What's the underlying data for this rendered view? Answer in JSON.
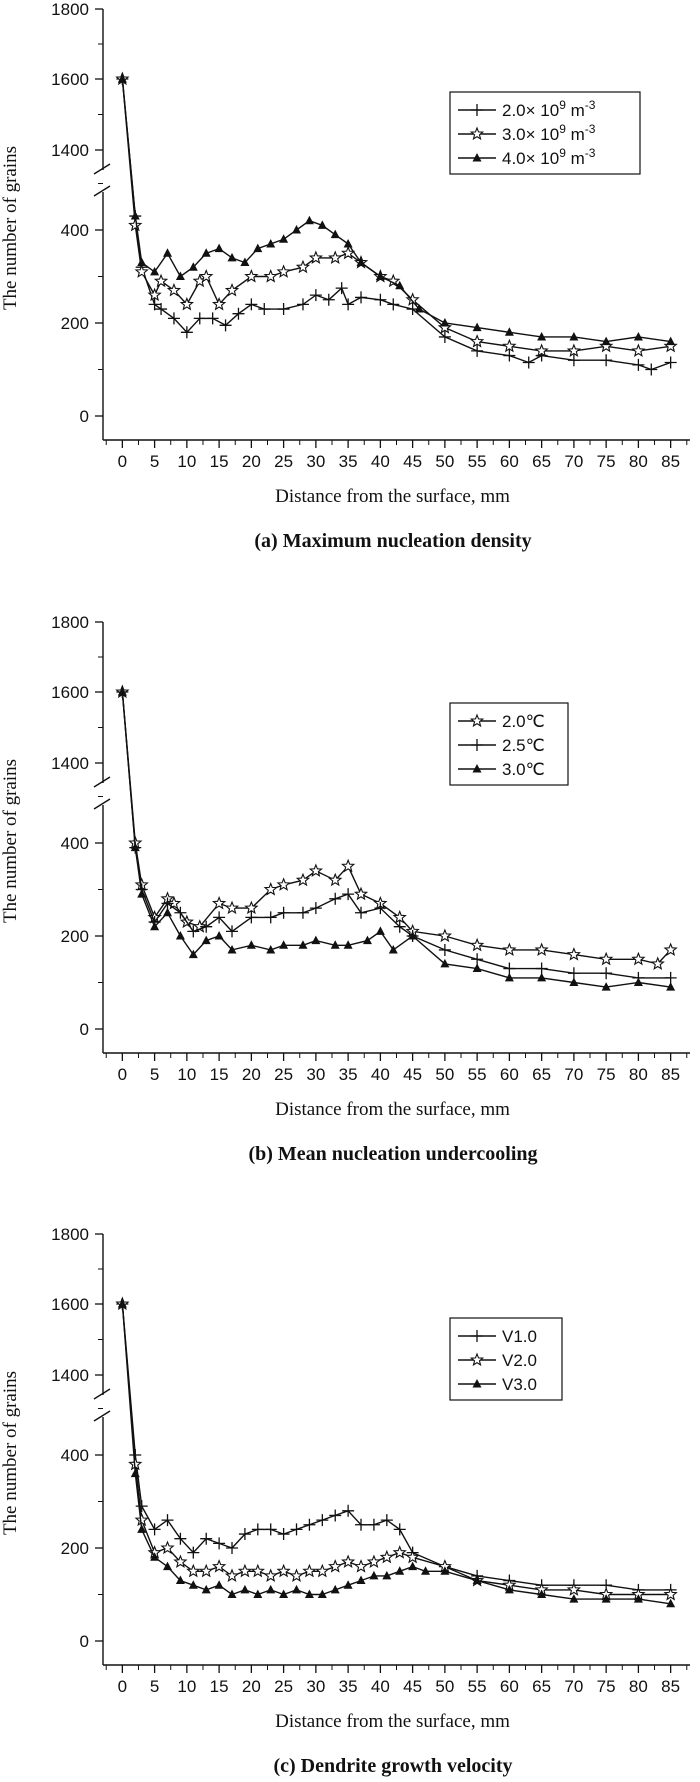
{
  "chart_data": [
    {
      "type": "line",
      "panel": "a",
      "caption": "(a) Maximum nucleation density",
      "xlabel": "Distance from the surface, mm",
      "ylabel": "The number of grains",
      "x_ticks": [
        "0",
        "5",
        "10",
        "15",
        "20",
        "25",
        "30",
        "35",
        "40",
        "45",
        "50",
        "55",
        "60",
        "65",
        "70",
        "75",
        "80",
        "85"
      ],
      "y_ticks_upper": [
        "1400",
        "1600",
        "1800"
      ],
      "y_ticks_lower": [
        "0",
        "200",
        "400"
      ],
      "y_axis_break": [
        460,
        1300
      ],
      "xlim": [
        -3,
        88
      ],
      "series": [
        {
          "name": "2.0× 10",
          "sup": "9",
          "unit": " m",
          "unit_sup": "-3",
          "marker": "plus",
          "x": [
            0,
            2,
            3,
            5,
            6,
            8,
            10,
            12,
            14,
            16,
            18,
            20,
            22,
            25,
            28,
            30,
            32,
            34,
            35,
            37,
            40,
            42,
            45,
            50,
            55,
            60,
            63,
            65,
            70,
            75,
            80,
            82,
            85
          ],
          "y": [
            1600,
            430,
            320,
            240,
            230,
            210,
            180,
            210,
            210,
            195,
            220,
            240,
            230,
            230,
            240,
            260,
            250,
            275,
            240,
            255,
            250,
            240,
            230,
            170,
            140,
            130,
            115,
            130,
            120,
            120,
            110,
            100,
            115
          ]
        },
        {
          "name": "3.0× 10",
          "sup": "9",
          "unit": " m",
          "unit_sup": "-3",
          "marker": "star",
          "x": [
            0,
            2,
            3,
            5,
            6,
            8,
            10,
            12,
            13,
            15,
            17,
            20,
            23,
            25,
            28,
            30,
            33,
            35,
            37,
            40,
            42,
            45,
            50,
            55,
            60,
            65,
            70,
            75,
            80,
            85
          ],
          "y": [
            1600,
            410,
            310,
            260,
            290,
            270,
            240,
            290,
            300,
            240,
            270,
            300,
            300,
            310,
            320,
            340,
            340,
            350,
            330,
            300,
            290,
            250,
            190,
            160,
            150,
            140,
            140,
            150,
            140,
            150
          ]
        },
        {
          "name": "4.0× 10",
          "sup": "9",
          "unit": " m",
          "unit_sup": "-3",
          "marker": "triangle",
          "x": [
            0,
            2,
            3,
            5,
            7,
            9,
            11,
            13,
            15,
            17,
            19,
            21,
            23,
            25,
            27,
            29,
            31,
            33,
            35,
            37,
            40,
            43,
            46,
            50,
            55,
            60,
            65,
            70,
            75,
            80,
            85
          ],
          "y": [
            1600,
            430,
            330,
            310,
            350,
            300,
            320,
            350,
            360,
            340,
            330,
            360,
            370,
            380,
            400,
            420,
            410,
            390,
            370,
            330,
            300,
            280,
            230,
            200,
            190,
            180,
            170,
            170,
            160,
            170,
            160
          ]
        }
      ]
    },
    {
      "type": "line",
      "panel": "b",
      "caption": "(b) Mean nucleation undercooling",
      "xlabel": "Distance from the surface, mm",
      "ylabel": "The number of grains",
      "x_ticks": [
        "0",
        "5",
        "10",
        "15",
        "20",
        "25",
        "30",
        "35",
        "40",
        "45",
        "50",
        "55",
        "60",
        "65",
        "70",
        "75",
        "80",
        "85"
      ],
      "y_ticks_upper": [
        "1400",
        "1600",
        "1800"
      ],
      "y_ticks_lower": [
        "0",
        "200",
        "400"
      ],
      "y_axis_break": [
        460,
        1300
      ],
      "xlim": [
        -3,
        88
      ],
      "series": [
        {
          "name": "2.0℃",
          "marker": "star",
          "x": [
            0,
            2,
            3,
            5,
            7,
            8,
            10,
            12,
            15,
            17,
            20,
            23,
            25,
            28,
            30,
            33,
            35,
            37,
            40,
            43,
            45,
            50,
            55,
            60,
            65,
            70,
            75,
            80,
            83,
            85
          ],
          "y": [
            1600,
            400,
            310,
            240,
            280,
            270,
            230,
            220,
            270,
            260,
            260,
            300,
            310,
            320,
            340,
            320,
            350,
            290,
            270,
            240,
            210,
            200,
            180,
            170,
            170,
            160,
            150,
            150,
            140,
            170
          ]
        },
        {
          "name": "2.5℃",
          "marker": "plus",
          "x": [
            0,
            2,
            3,
            5,
            7,
            9,
            11,
            13,
            15,
            17,
            20,
            23,
            25,
            28,
            30,
            33,
            35,
            37,
            40,
            43,
            45,
            50,
            55,
            60,
            65,
            70,
            75,
            80,
            85
          ],
          "y": [
            1600,
            390,
            300,
            230,
            270,
            250,
            210,
            220,
            240,
            210,
            240,
            240,
            250,
            250,
            260,
            280,
            290,
            250,
            260,
            220,
            200,
            170,
            150,
            130,
            130,
            120,
            120,
            110,
            110
          ]
        },
        {
          "name": "3.0℃",
          "marker": "triangle",
          "x": [
            0,
            2,
            3,
            5,
            7,
            9,
            11,
            13,
            15,
            17,
            20,
            23,
            25,
            28,
            30,
            33,
            35,
            38,
            40,
            42,
            45,
            50,
            55,
            60,
            65,
            70,
            75,
            80,
            85
          ],
          "y": [
            1600,
            390,
            290,
            220,
            250,
            200,
            160,
            190,
            200,
            170,
            180,
            170,
            180,
            180,
            190,
            180,
            180,
            190,
            210,
            170,
            200,
            140,
            130,
            110,
            110,
            100,
            90,
            100,
            90
          ]
        }
      ]
    },
    {
      "type": "line",
      "panel": "c",
      "caption": "(c) Dendrite growth velocity",
      "xlabel": "Distance from the surface, mm",
      "ylabel": "The number of grains",
      "x_ticks": [
        "0",
        "5",
        "10",
        "15",
        "20",
        "25",
        "30",
        "35",
        "40",
        "45",
        "50",
        "55",
        "60",
        "65",
        "70",
        "75",
        "80",
        "85"
      ],
      "y_ticks_upper": [
        "1400",
        "1600",
        "1800"
      ],
      "y_ticks_lower": [
        "0",
        "200",
        "400"
      ],
      "y_axis_break": [
        460,
        1300
      ],
      "xlim": [
        -3,
        88
      ],
      "series": [
        {
          "name": "V1.0",
          "marker": "plus",
          "x": [
            0,
            2,
            3,
            5,
            7,
            9,
            11,
            13,
            15,
            17,
            19,
            21,
            23,
            25,
            27,
            29,
            31,
            33,
            35,
            37,
            39,
            41,
            43,
            45,
            50,
            55,
            60,
            65,
            70,
            75,
            80,
            85
          ],
          "y": [
            1600,
            400,
            290,
            240,
            260,
            220,
            190,
            220,
            210,
            200,
            230,
            240,
            240,
            230,
            240,
            250,
            260,
            270,
            280,
            250,
            250,
            260,
            240,
            190,
            160,
            140,
            130,
            120,
            120,
            120,
            110,
            110
          ]
        },
        {
          "name": "V2.0",
          "marker": "star",
          "x": [
            0,
            2,
            3,
            5,
            7,
            9,
            11,
            13,
            15,
            17,
            19,
            21,
            23,
            25,
            27,
            29,
            31,
            33,
            35,
            37,
            39,
            41,
            43,
            45,
            50,
            55,
            60,
            65,
            70,
            75,
            80,
            85
          ],
          "y": [
            1600,
            380,
            260,
            190,
            200,
            170,
            150,
            150,
            160,
            140,
            150,
            150,
            140,
            150,
            140,
            150,
            150,
            160,
            170,
            160,
            170,
            180,
            190,
            180,
            160,
            130,
            120,
            110,
            110,
            100,
            100,
            100
          ]
        },
        {
          "name": "V3.0",
          "marker": "triangle",
          "x": [
            0,
            2,
            3,
            5,
            7,
            9,
            11,
            13,
            15,
            17,
            19,
            21,
            23,
            25,
            27,
            29,
            31,
            33,
            35,
            37,
            39,
            41,
            43,
            45,
            47,
            50,
            55,
            60,
            65,
            70,
            75,
            80,
            85
          ],
          "y": [
            1600,
            360,
            240,
            180,
            160,
            130,
            120,
            110,
            120,
            100,
            110,
            100,
            110,
            100,
            110,
            100,
            100,
            110,
            120,
            130,
            140,
            140,
            150,
            160,
            150,
            150,
            130,
            110,
            100,
            90,
            90,
            90,
            80
          ]
        }
      ]
    }
  ]
}
